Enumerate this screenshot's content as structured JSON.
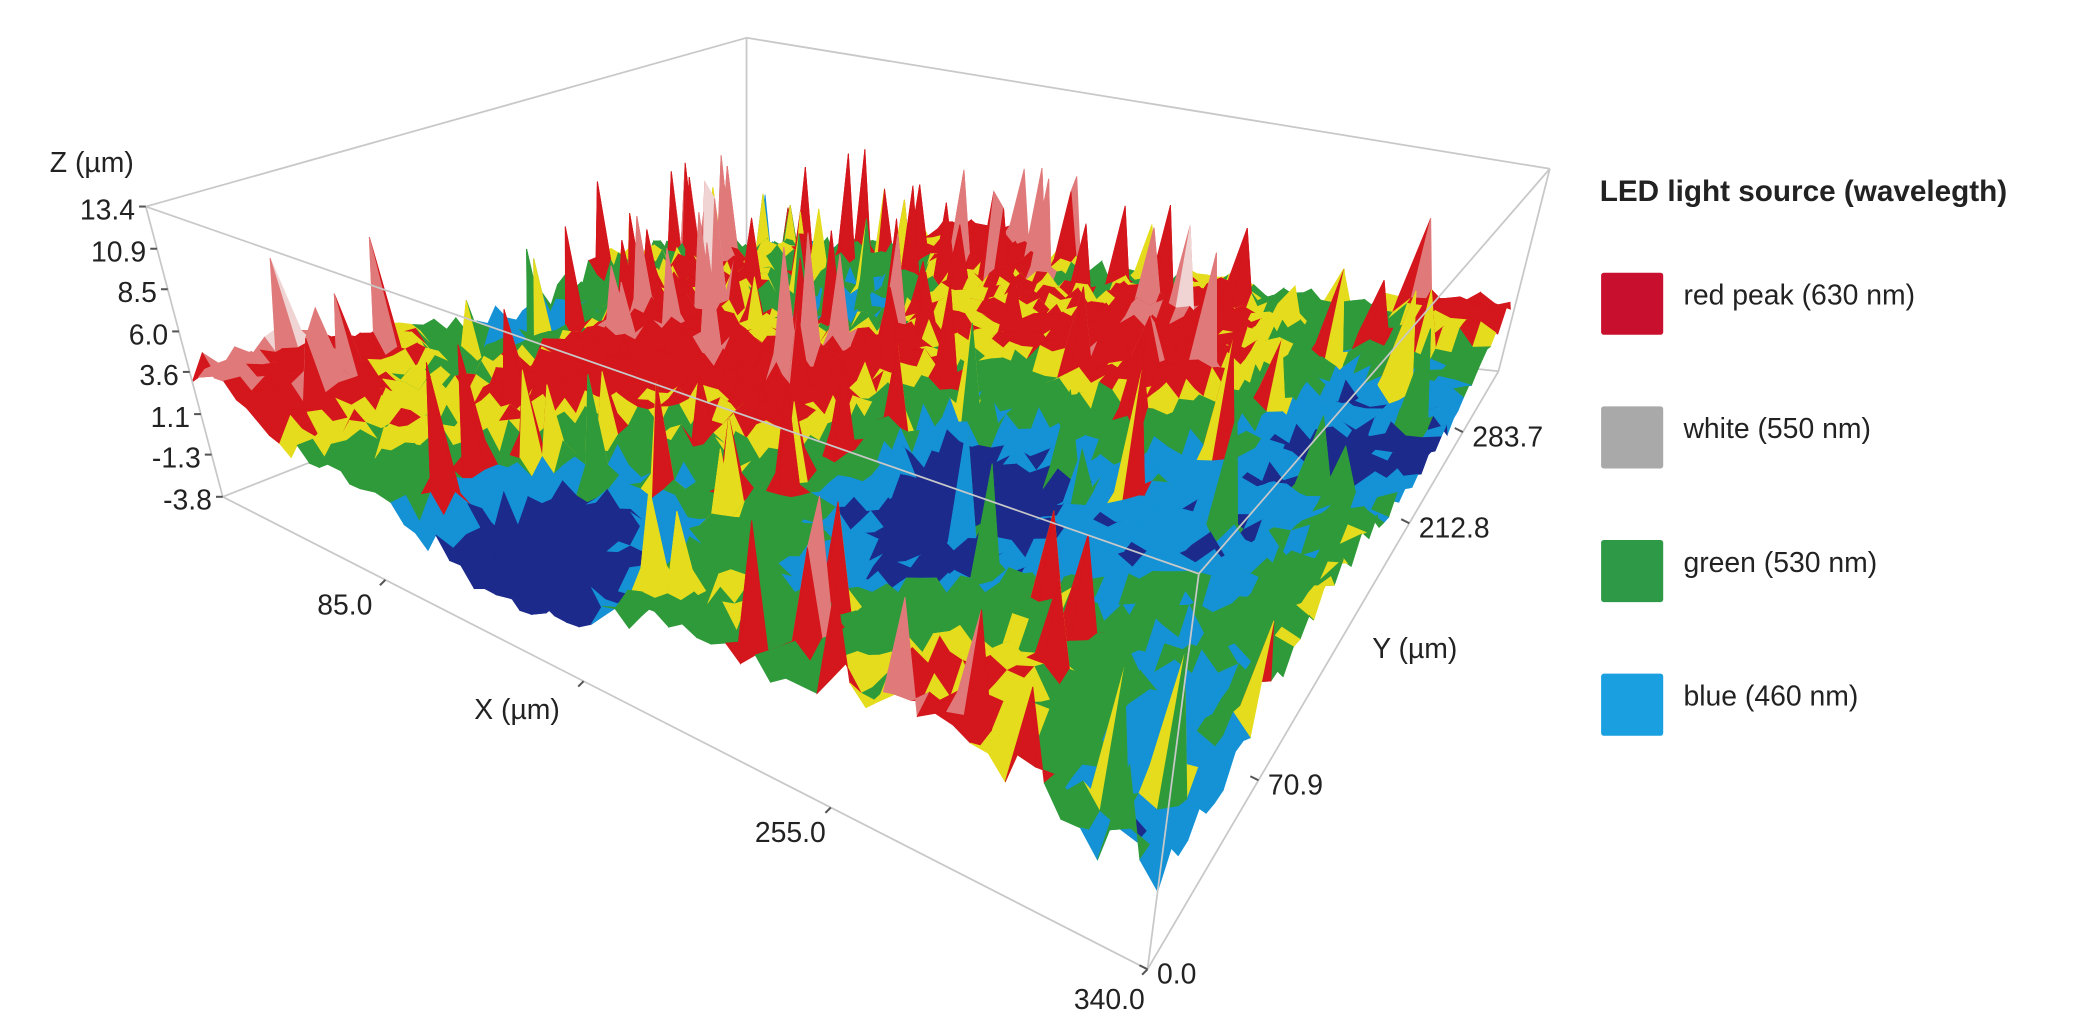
{
  "chart_data": {
    "type": "surface3d",
    "xlabel": "X (µm)",
    "ylabel": "Y (µm)",
    "zlabel": "Z (µm)",
    "xlim": [
      0,
      340
    ],
    "ylim": [
      0,
      340
    ],
    "zlim": [
      -3.8,
      13.4
    ],
    "xticks": [
      {
        "value": 85,
        "label": "85.0"
      },
      170,
      {
        "value": 255,
        "label": "255.0"
      },
      {
        "value": 340,
        "label": "340.0"
      }
    ],
    "yticks": [
      {
        "value": 0,
        "label": "0.0"
      },
      70.9,
      212.8,
      283.7
    ],
    "zticks": [
      13.4,
      10.9,
      8.5,
      {
        "value": 6,
        "label": "6.0"
      },
      3.6,
      1.1,
      -1.3,
      -3.8
    ],
    "legend_title": "LED light source (wavelegth)",
    "series": [
      {
        "name": "red peak (630 nm)",
        "color": "#c8102e"
      },
      {
        "name": "white (550 nm)",
        "color": "#a9a9a9"
      },
      {
        "name": "green (530 nm)",
        "color": "#2e9a48"
      },
      {
        "name": "blue (460 nm)",
        "color": "#1aa0e0"
      }
    ]
  }
}
